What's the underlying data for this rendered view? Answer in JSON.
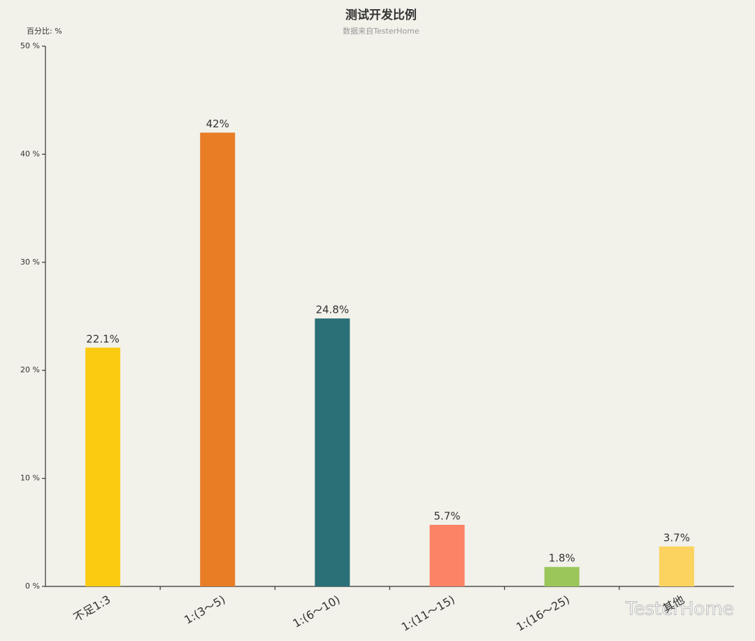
{
  "chart_data": {
    "type": "bar",
    "title": "测试开发比例",
    "subtitle": "数据来自TesterHome",
    "y_label": "百分比: %",
    "watermark": "TesterHome",
    "categories": [
      "不足1:3",
      "1:(3～5)",
      "1:(6～10)",
      "1:(11～15)",
      "1:(16～25)",
      "其他"
    ],
    "values": [
      22.1,
      42,
      24.8,
      5.7,
      1.8,
      3.7
    ],
    "value_labels": [
      "22.1%",
      "42%",
      "24.8%",
      "5.7%",
      "1.8%",
      "3.7%"
    ],
    "colors": [
      "#fbcb12",
      "#e87d26",
      "#2a7076",
      "#fd8366",
      "#9bc65a",
      "#fbd35e"
    ],
    "ylim": [
      0,
      50
    ],
    "yticks": [
      {
        "value": 0,
        "label": "0 %"
      },
      {
        "value": 10,
        "label": "10 %"
      },
      {
        "value": 20,
        "label": "20 %"
      },
      {
        "value": 30,
        "label": "30 %"
      },
      {
        "value": 40,
        "label": "40 %"
      },
      {
        "value": 50,
        "label": "50 %"
      }
    ],
    "grid": false
  }
}
